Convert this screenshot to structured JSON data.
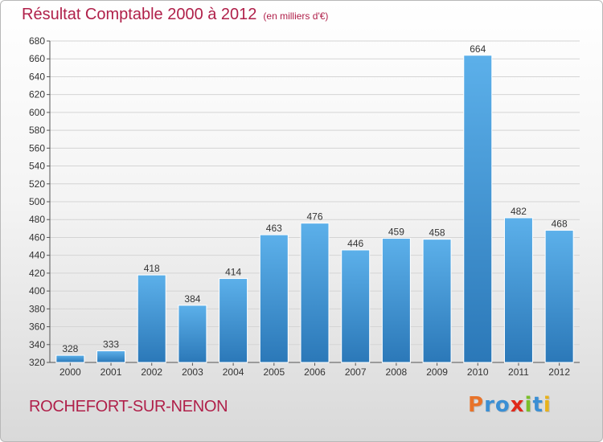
{
  "title": "Résultat Comptable 2000 à 2012",
  "subtitle": "(en milliers d'€)",
  "footer_label": "ROCHEFORT-SUR-NENON",
  "logo": {
    "text": "Proxiti",
    "letters": [
      "P",
      "r",
      "o",
      "x",
      "i",
      "t",
      "i"
    ],
    "colors": [
      "#e8732a",
      "#3b8fd4",
      "#3b8fd4",
      "#e0291b",
      "#7bbf2a",
      "#3b8fd4",
      "#e8b21b"
    ]
  },
  "colors": {
    "accent": "#b0204a",
    "bar_top": "#5cb0ea",
    "bar_bottom": "#2b78b8",
    "grid": "#d4d4d4"
  },
  "chart_data": {
    "type": "bar",
    "categories": [
      "2000",
      "2001",
      "2002",
      "2003",
      "2004",
      "2005",
      "2006",
      "2007",
      "2008",
      "2009",
      "2010",
      "2011",
      "2012"
    ],
    "values": [
      328,
      333,
      418,
      384,
      414,
      463,
      476,
      446,
      459,
      458,
      664,
      482,
      468
    ],
    "ylim": [
      320,
      680
    ],
    "yticks": [
      320,
      340,
      360,
      380,
      400,
      420,
      440,
      460,
      480,
      500,
      520,
      540,
      560,
      580,
      600,
      620,
      640,
      660,
      680
    ],
    "grid": true,
    "data_labels": true
  }
}
